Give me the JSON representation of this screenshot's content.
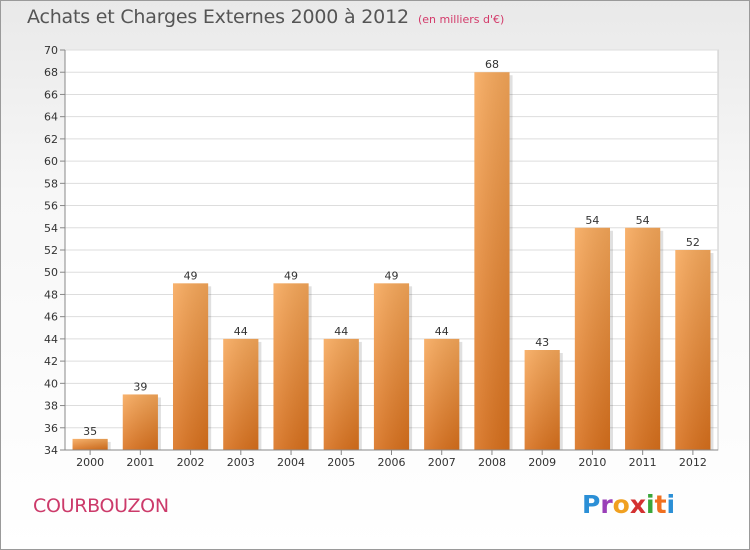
{
  "header": {
    "title": "Achats et Charges Externes 2000 à 2012",
    "unit": "(en milliers d'€)"
  },
  "footer": {
    "commune": "COURBOUZON",
    "brand_letters": [
      "P",
      "r",
      "o",
      "x",
      "i",
      "t",
      "i"
    ],
    "brand_colors": [
      "#2b8fd6",
      "#9a3fb8",
      "#f0a020",
      "#d33030",
      "#3aa63a",
      "#f07020",
      "#2b8fd6"
    ]
  },
  "chart_data": {
    "type": "bar",
    "title": "Achats et Charges Externes 2000 à 2012",
    "subtitle": "(en milliers d'€)",
    "categories": [
      "2000",
      "2001",
      "2002",
      "2003",
      "2004",
      "2005",
      "2006",
      "2007",
      "2008",
      "2009",
      "2010",
      "2011",
      "2012"
    ],
    "values": [
      35,
      39,
      49,
      44,
      49,
      44,
      49,
      44,
      68,
      43,
      54,
      54,
      52
    ],
    "ylim": [
      34,
      70
    ],
    "yticks": [
      34,
      36,
      38,
      40,
      42,
      44,
      46,
      48,
      50,
      52,
      54,
      56,
      58,
      60,
      62,
      64,
      66,
      68,
      70
    ],
    "grid": true,
    "bar_color": "#f2953a",
    "xlabel": "",
    "ylabel": ""
  }
}
